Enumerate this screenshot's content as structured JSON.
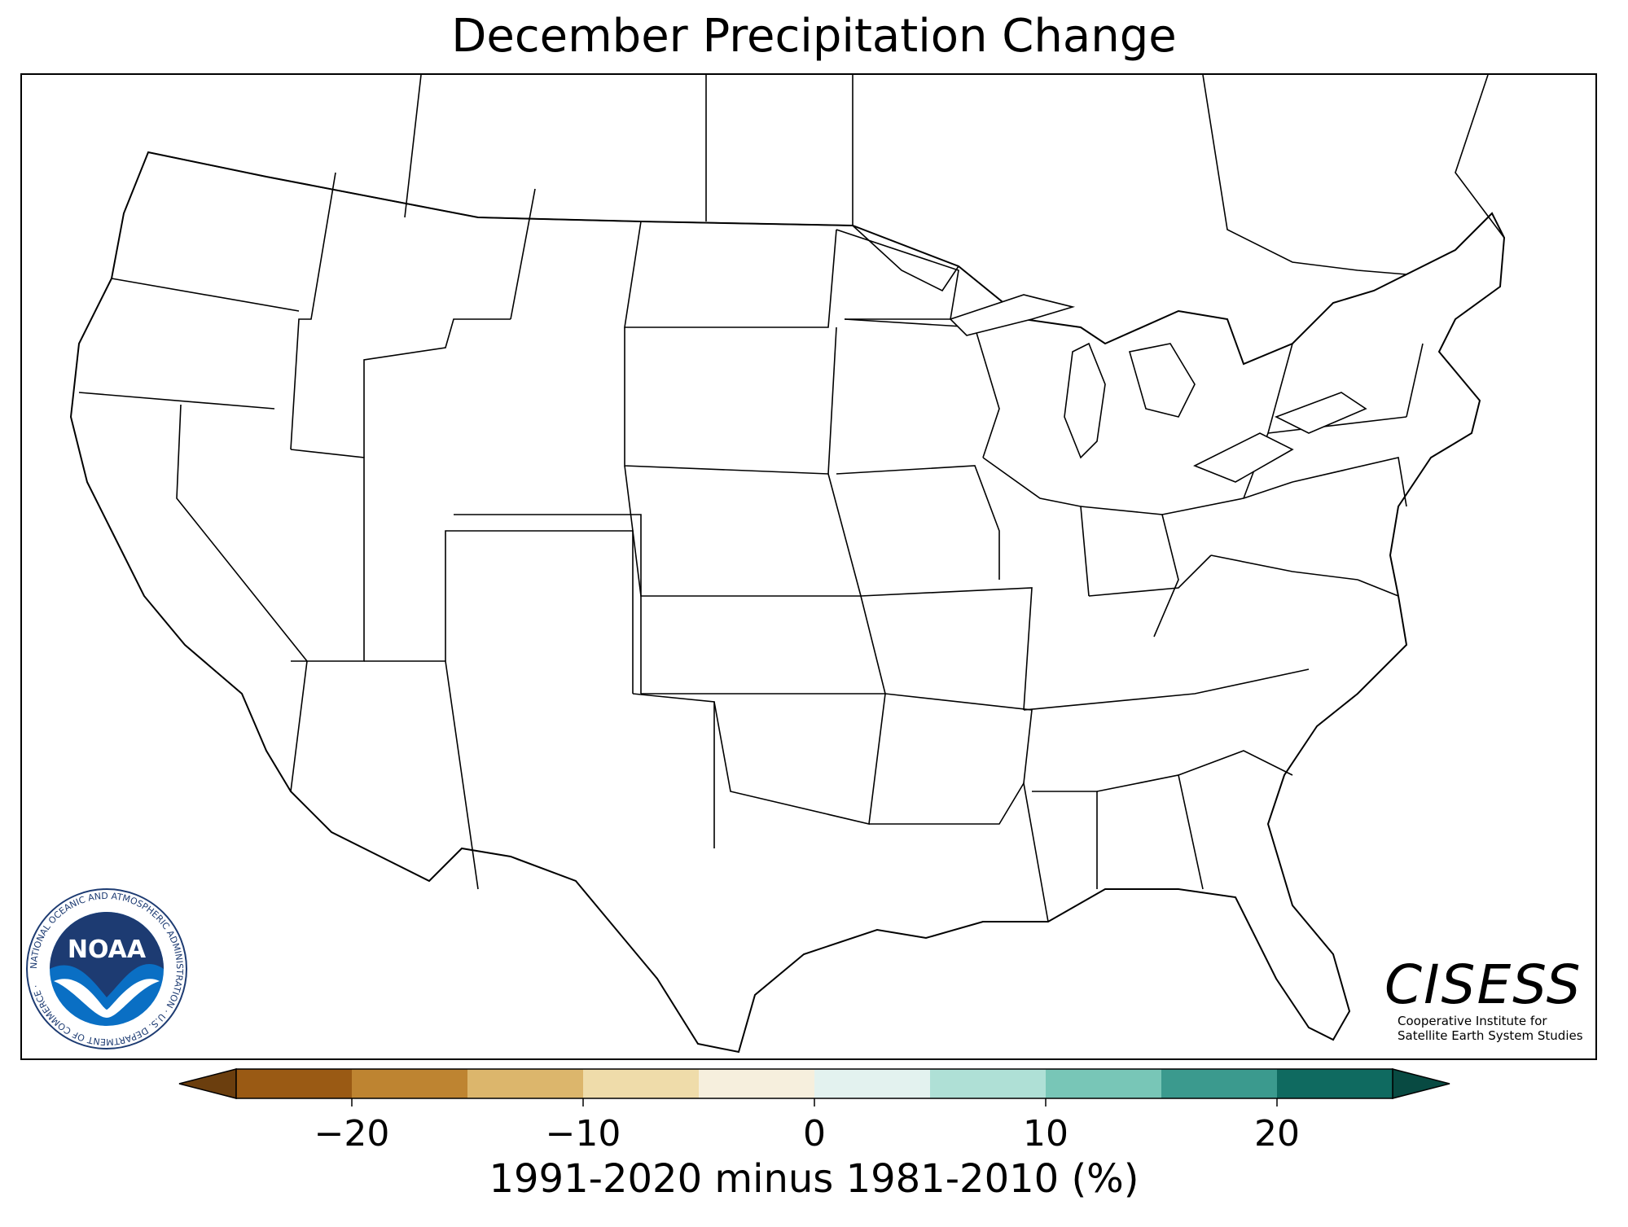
{
  "title": "December Precipitation Change",
  "colorbar": {
    "label": "1991-2020 minus 1981-2010 (%)",
    "ticks": [
      {
        "value": -20,
        "label": "−20"
      },
      {
        "value": -10,
        "label": "−10"
      },
      {
        "value": 0,
        "label": "0"
      },
      {
        "value": 10,
        "label": "10"
      },
      {
        "value": 20,
        "label": "20"
      }
    ],
    "range": [
      -25,
      25
    ],
    "bins": [
      {
        "from": -25,
        "to": -20,
        "color": "#9a5a14"
      },
      {
        "from": -20,
        "to": -15,
        "color": "#be8431"
      },
      {
        "from": -15,
        "to": -10,
        "color": "#dcb66c"
      },
      {
        "from": -10,
        "to": -5,
        "color": "#efdcaa"
      },
      {
        "from": -5,
        "to": 0,
        "color": "#f6efdd"
      },
      {
        "from": 0,
        "to": 5,
        "color": "#e3f2ef"
      },
      {
        "from": 5,
        "to": 10,
        "color": "#afe0d6"
      },
      {
        "from": 10,
        "to": 15,
        "color": "#78c6b7"
      },
      {
        "from": 15,
        "to": 20,
        "color": "#3b9a8e"
      },
      {
        "from": 20,
        "to": 25,
        "color": "#0f6a60"
      }
    ],
    "under_color": "#6b3e0e",
    "over_color": "#084a42"
  },
  "logos": {
    "noaa": {
      "name": "NOAA",
      "ring_text": "NATIONAL OCEANIC AND ATMOSPHERIC ADMINISTRATION · U.S. DEPARTMENT OF COMMERCE ·"
    },
    "cisess": {
      "name": "CISESS",
      "line1": "Cooperative Institute for",
      "line2": "Satellite Earth System Studies"
    }
  }
}
